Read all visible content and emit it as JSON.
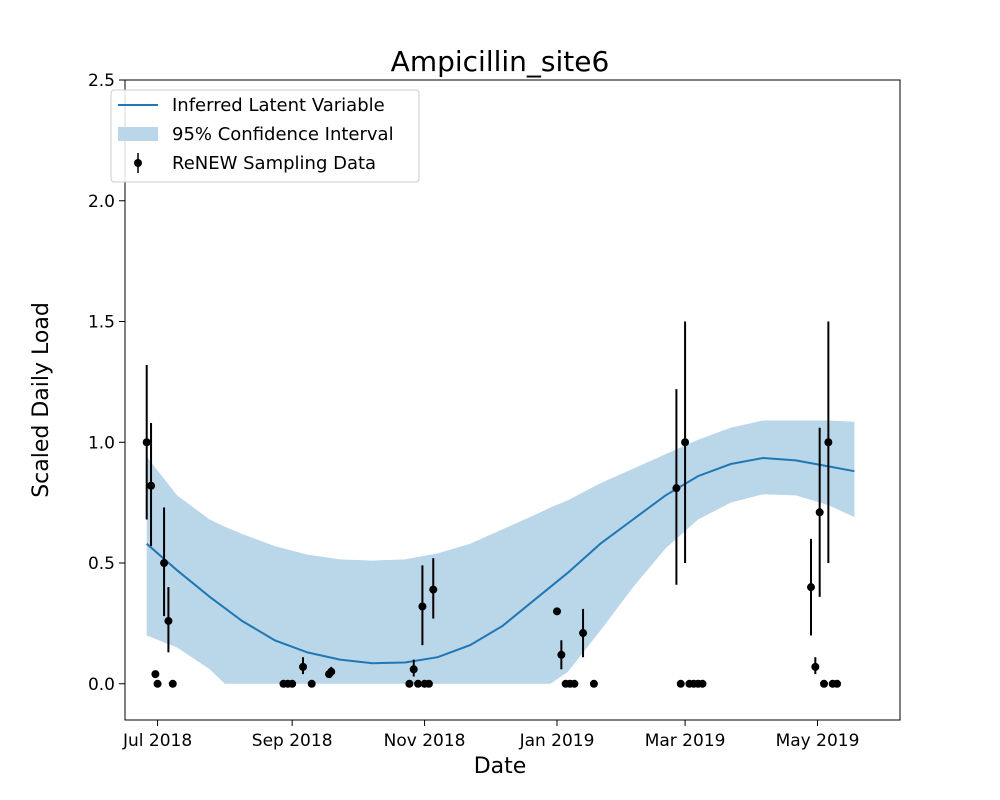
{
  "chart_data": {
    "type": "line",
    "title": "Ampicillin_site6",
    "xlabel": "Date",
    "ylabel": "Scaled Daily Load",
    "ylim": [
      -0.15,
      2.5
    ],
    "xlim": [
      "2018-06-16",
      "2019-06-08"
    ],
    "yticks": [
      0.0,
      0.5,
      1.0,
      1.5,
      2.0,
      2.5
    ],
    "ytick_labels": [
      "0.0",
      "0.5",
      "1.0",
      "1.5",
      "2.0",
      "2.5"
    ],
    "xticks": [
      "2018-07-01",
      "2018-09-01",
      "2018-11-01",
      "2019-01-01",
      "2019-03-01",
      "2019-05-01"
    ],
    "xtick_labels": [
      "Jul 2018",
      "Sep 2018",
      "Nov 2018",
      "Jan 2019",
      "Mar 2019",
      "May 2019"
    ],
    "grid": false,
    "legend_position": "top-left",
    "colors": {
      "line": "#1f77b4",
      "band": "#bad6e9",
      "points": "#000000"
    },
    "legend": [
      {
        "label": "Inferred Latent Variable",
        "kind": "line"
      },
      {
        "label": "95% Confidence Interval",
        "kind": "band"
      },
      {
        "label": "ReNEW Sampling Data",
        "kind": "errorbar"
      }
    ],
    "latent_series": {
      "name": "Inferred Latent Variable",
      "x": [
        "2018-06-26",
        "2018-07-10",
        "2018-07-25",
        "2018-08-09",
        "2018-08-24",
        "2018-09-08",
        "2018-09-23",
        "2018-10-08",
        "2018-10-23",
        "2018-11-07",
        "2018-11-22",
        "2018-12-07",
        "2018-12-22",
        "2019-01-06",
        "2019-01-21",
        "2019-02-05",
        "2019-02-20",
        "2019-03-07",
        "2019-03-22",
        "2019-04-06",
        "2019-04-21",
        "2019-05-06",
        "2019-05-18"
      ],
      "y": [
        0.58,
        0.47,
        0.36,
        0.26,
        0.18,
        0.13,
        0.1,
        0.085,
        0.088,
        0.11,
        0.16,
        0.24,
        0.35,
        0.46,
        0.58,
        0.68,
        0.78,
        0.86,
        0.91,
        0.935,
        0.925,
        0.9,
        0.88
      ]
    },
    "confidence_band": {
      "name": "95% Confidence Interval",
      "x": [
        "2018-06-26",
        "2018-07-10",
        "2018-07-25",
        "2018-08-01",
        "2018-08-09",
        "2018-08-24",
        "2018-09-08",
        "2018-09-23",
        "2018-10-08",
        "2018-10-23",
        "2018-11-07",
        "2018-11-22",
        "2018-12-07",
        "2018-12-22",
        "2018-12-29",
        "2019-01-06",
        "2019-01-21",
        "2019-02-05",
        "2019-02-20",
        "2019-03-07",
        "2019-03-22",
        "2019-04-06",
        "2019-04-21",
        "2019-05-06",
        "2019-05-18"
      ],
      "lower": [
        0.2,
        0.15,
        0.06,
        0.0,
        0.0,
        0.0,
        0.0,
        0.0,
        0.0,
        0.0,
        0.0,
        0.0,
        0.0,
        0.0,
        0.0,
        0.05,
        0.22,
        0.4,
        0.56,
        0.68,
        0.75,
        0.785,
        0.78,
        0.74,
        0.69
      ],
      "upper": [
        0.94,
        0.78,
        0.68,
        0.65,
        0.62,
        0.57,
        0.535,
        0.515,
        0.51,
        0.515,
        0.54,
        0.58,
        0.64,
        0.7,
        0.73,
        0.76,
        0.83,
        0.89,
        0.95,
        1.01,
        1.06,
        1.09,
        1.09,
        1.09,
        1.085
      ]
    },
    "sampling_data": {
      "name": "ReNEW Sampling Data",
      "points": [
        {
          "x": "2018-06-26",
          "y": 1.0,
          "lo": 0.68,
          "hi": 1.32
        },
        {
          "x": "2018-06-28",
          "y": 0.82,
          "lo": 0.57,
          "hi": 1.08
        },
        {
          "x": "2018-06-30",
          "y": 0.04,
          "lo": 0.03,
          "hi": 0.05
        },
        {
          "x": "2018-07-01",
          "y": 0.0
        },
        {
          "x": "2018-07-04",
          "y": 0.5,
          "lo": 0.28,
          "hi": 0.73
        },
        {
          "x": "2018-07-06",
          "y": 0.26,
          "lo": 0.13,
          "hi": 0.4
        },
        {
          "x": "2018-07-08",
          "y": 0.0
        },
        {
          "x": "2018-08-28",
          "y": 0.0
        },
        {
          "x": "2018-08-30",
          "y": 0.0
        },
        {
          "x": "2018-09-01",
          "y": 0.0
        },
        {
          "x": "2018-09-06",
          "y": 0.07,
          "lo": 0.04,
          "hi": 0.11
        },
        {
          "x": "2018-09-10",
          "y": 0.0
        },
        {
          "x": "2018-09-18",
          "y": 0.04,
          "lo": 0.03,
          "hi": 0.06
        },
        {
          "x": "2018-09-19",
          "y": 0.05,
          "lo": 0.03,
          "hi": 0.07
        },
        {
          "x": "2018-10-25",
          "y": 0.0
        },
        {
          "x": "2018-10-27",
          "y": 0.06,
          "lo": 0.03,
          "hi": 0.1
        },
        {
          "x": "2018-10-29",
          "y": 0.0
        },
        {
          "x": "2018-10-31",
          "y": 0.32,
          "lo": 0.16,
          "hi": 0.49
        },
        {
          "x": "2018-11-01",
          "y": 0.0
        },
        {
          "x": "2018-11-03",
          "y": 0.0
        },
        {
          "x": "2018-11-05",
          "y": 0.39,
          "lo": 0.27,
          "hi": 0.52
        },
        {
          "x": "2019-01-01",
          "y": 0.3
        },
        {
          "x": "2019-01-03",
          "y": 0.12,
          "lo": 0.06,
          "hi": 0.18
        },
        {
          "x": "2019-01-05",
          "y": 0.0
        },
        {
          "x": "2019-01-07",
          "y": 0.0
        },
        {
          "x": "2019-01-09",
          "y": 0.0
        },
        {
          "x": "2019-01-13",
          "y": 0.21,
          "lo": 0.11,
          "hi": 0.31
        },
        {
          "x": "2019-01-18",
          "y": 0.0
        },
        {
          "x": "2019-02-25",
          "y": 0.81,
          "lo": 0.41,
          "hi": 1.22
        },
        {
          "x": "2019-02-27",
          "y": 0.0
        },
        {
          "x": "2019-03-01",
          "y": 1.0,
          "lo": 0.5,
          "hi": 1.5
        },
        {
          "x": "2019-03-03",
          "y": 0.0
        },
        {
          "x": "2019-03-05",
          "y": 0.0
        },
        {
          "x": "2019-03-07",
          "y": 0.0
        },
        {
          "x": "2019-03-09",
          "y": 0.0
        },
        {
          "x": "2019-04-28",
          "y": 0.4,
          "lo": 0.2,
          "hi": 0.6
        },
        {
          "x": "2019-04-30",
          "y": 0.07,
          "lo": 0.04,
          "hi": 0.11
        },
        {
          "x": "2019-05-02",
          "y": 0.71,
          "lo": 0.36,
          "hi": 1.06
        },
        {
          "x": "2019-05-04",
          "y": 0.0
        },
        {
          "x": "2019-05-06",
          "y": 1.0,
          "lo": 0.5,
          "hi": 1.5
        },
        {
          "x": "2019-05-08",
          "y": 0.0
        },
        {
          "x": "2019-05-10",
          "y": 0.0
        }
      ]
    }
  }
}
